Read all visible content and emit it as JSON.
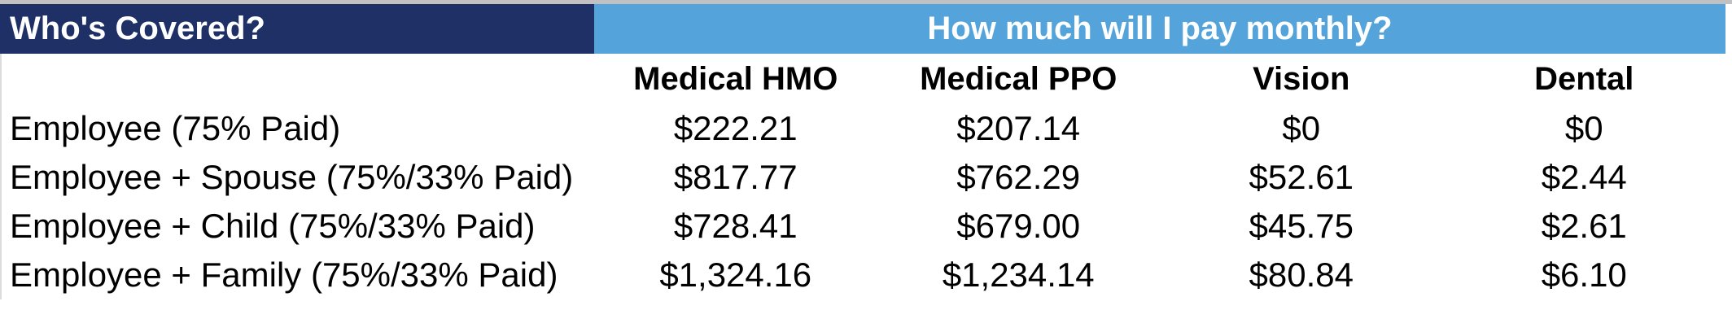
{
  "banner": {
    "who_covered": "Who's Covered?",
    "pay_monthly": "How much will I pay monthly?"
  },
  "colors": {
    "navy_header_bg": "#1e3066",
    "blue_header_bg": "#54a4db",
    "top_strip": "#c1c1c1",
    "header_text": "#ffffff",
    "body_text": "#000000"
  },
  "chart_data": {
    "type": "table",
    "title": "How much will I pay monthly?",
    "corner_header": "Who's Covered?",
    "columns": [
      "Medical HMO",
      "Medical PPO",
      "Vision",
      "Dental"
    ],
    "rows": [
      {
        "label": "Employee (75% Paid)",
        "values": [
          "$222.21",
          "$207.14",
          "$0",
          "$0"
        ]
      },
      {
        "label": "Employee + Spouse (75%/33% Paid)",
        "values": [
          "$817.77",
          "$762.29",
          "$52.61",
          "$2.44"
        ]
      },
      {
        "label": "Employee + Child (75%/33% Paid)",
        "values": [
          "$728.41",
          "$679.00",
          "$45.75",
          "$2.61"
        ]
      },
      {
        "label": "Employee + Family (75%/33% Paid)",
        "values": [
          "$1,324.16",
          "$1,234.14",
          "$80.84",
          "$6.10"
        ]
      }
    ]
  }
}
